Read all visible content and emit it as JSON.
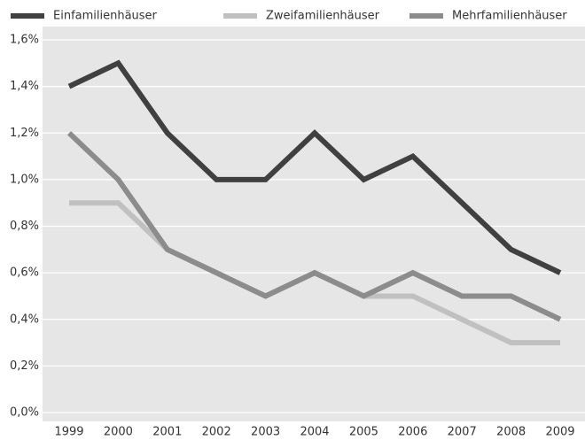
{
  "chart_data": {
    "type": "line",
    "categories": [
      "1999",
      "2000",
      "2001",
      "2002",
      "2003",
      "2004",
      "2005",
      "2006",
      "2007",
      "2008",
      "2009"
    ],
    "series": [
      {
        "name": "Einfamilienhäuser",
        "color": "#404040",
        "values": [
          1.4,
          1.5,
          1.2,
          1.0,
          1.0,
          1.2,
          1.0,
          1.1,
          0.9,
          0.7,
          0.6
        ]
      },
      {
        "name": "Zweifamilienhäuser",
        "color": "#c0c0c0",
        "values": [
          0.9,
          0.9,
          0.7,
          0.6,
          0.5,
          0.6,
          0.5,
          0.5,
          0.4,
          0.3,
          0.3
        ]
      },
      {
        "name": "Mehrfamilienhäuser",
        "color": "#8c8c8c",
        "values": [
          1.2,
          1.0,
          0.7,
          0.6,
          0.5,
          0.6,
          0.5,
          0.6,
          0.5,
          0.5,
          0.4
        ]
      }
    ],
    "ylim": [
      0,
      1.6
    ],
    "yticks": [
      {
        "value": 0,
        "label": "0,0%"
      },
      {
        "value": 0.2,
        "label": "0,2%"
      },
      {
        "value": 0.4,
        "label": "0,4%"
      },
      {
        "value": 0.6,
        "label": "0,6%"
      },
      {
        "value": 0.8,
        "label": "0,8%"
      },
      {
        "value": 1.0,
        "label": "1,0%"
      },
      {
        "value": 1.2,
        "label": "1,2%"
      },
      {
        "value": 1.4,
        "label": "1,4%"
      },
      {
        "value": 1.6,
        "label": "1,6%"
      }
    ],
    "grid": true,
    "legend": "top"
  }
}
